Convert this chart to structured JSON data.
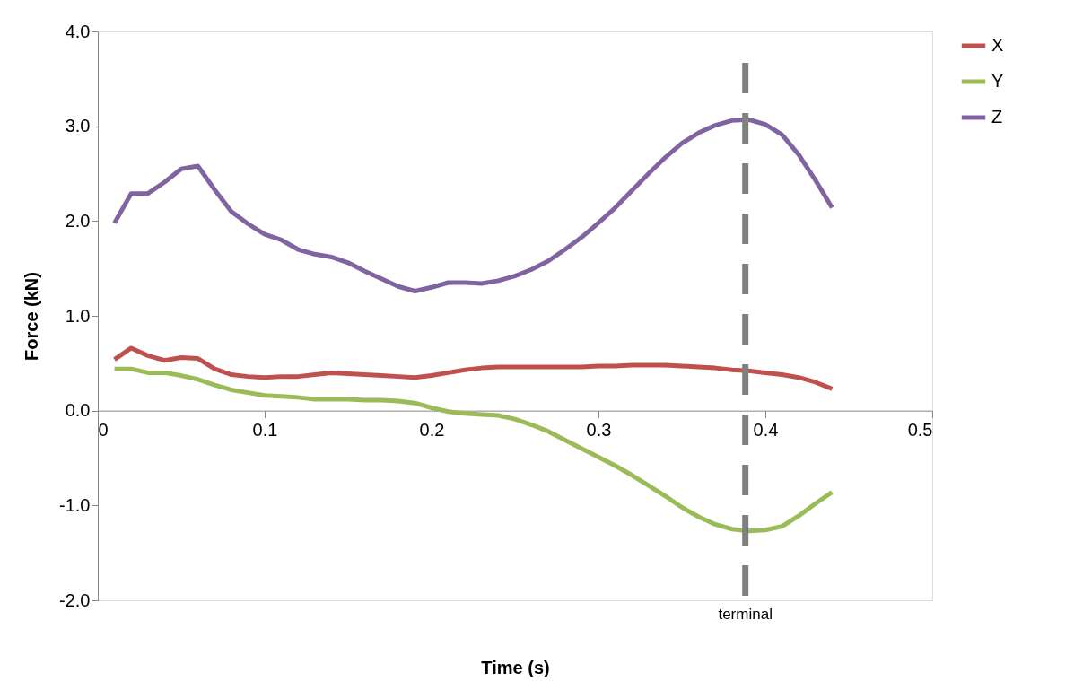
{
  "chart_data": {
    "type": "line",
    "xlabel": "Time (s)",
    "ylabel": "Force (kN)",
    "x": [
      0.01,
      0.02,
      0.03,
      0.04,
      0.05,
      0.06,
      0.07,
      0.08,
      0.09,
      0.1,
      0.11,
      0.12,
      0.13,
      0.14,
      0.15,
      0.16,
      0.17,
      0.18,
      0.19,
      0.2,
      0.21,
      0.22,
      0.23,
      0.24,
      0.25,
      0.26,
      0.27,
      0.28,
      0.29,
      0.3,
      0.31,
      0.32,
      0.33,
      0.34,
      0.35,
      0.36,
      0.37,
      0.38,
      0.39,
      0.4,
      0.41,
      0.42,
      0.43,
      0.44
    ],
    "series": [
      {
        "name": "X",
        "color": "#c0504d",
        "values": [
          0.54,
          0.66,
          0.58,
          0.53,
          0.56,
          0.55,
          0.44,
          0.38,
          0.36,
          0.35,
          0.36,
          0.36,
          0.38,
          0.4,
          0.39,
          0.38,
          0.37,
          0.36,
          0.35,
          0.37,
          0.4,
          0.43,
          0.45,
          0.46,
          0.46,
          0.46,
          0.46,
          0.46,
          0.46,
          0.47,
          0.47,
          0.48,
          0.48,
          0.48,
          0.47,
          0.46,
          0.45,
          0.43,
          0.42,
          0.4,
          0.38,
          0.35,
          0.3,
          0.23
        ]
      },
      {
        "name": "Y",
        "color": "#9bbb59",
        "values": [
          0.44,
          0.44,
          0.4,
          0.4,
          0.37,
          0.33,
          0.27,
          0.22,
          0.19,
          0.16,
          0.15,
          0.14,
          0.12,
          0.12,
          0.12,
          0.11,
          0.11,
          0.1,
          0.08,
          0.03,
          -0.01,
          -0.03,
          -0.04,
          -0.05,
          -0.09,
          -0.15,
          -0.22,
          -0.31,
          -0.4,
          -0.49,
          -0.58,
          -0.68,
          -0.79,
          -0.9,
          -1.02,
          -1.12,
          -1.2,
          -1.25,
          -1.27,
          -1.26,
          -1.22,
          -1.11,
          -0.98,
          -0.86
        ]
      },
      {
        "name": "Z",
        "color": "#8064a2",
        "values": [
          1.98,
          2.29,
          2.29,
          2.41,
          2.55,
          2.58,
          2.33,
          2.1,
          1.97,
          1.86,
          1.8,
          1.7,
          1.65,
          1.62,
          1.56,
          1.47,
          1.39,
          1.31,
          1.26,
          1.3,
          1.35,
          1.35,
          1.34,
          1.37,
          1.42,
          1.49,
          1.58,
          1.7,
          1.83,
          1.98,
          2.14,
          2.32,
          2.5,
          2.67,
          2.82,
          2.93,
          3.01,
          3.06,
          3.07,
          3.02,
          2.91,
          2.7,
          2.43,
          2.14
        ]
      }
    ],
    "xlim": [
      0,
      0.5
    ],
    "xticks": [
      0,
      0.1,
      0.2,
      0.3,
      0.4,
      0.5
    ],
    "ylim": [
      -2.0,
      4.0
    ],
    "yticks": [
      {
        "value": -2,
        "label": "-2.0"
      },
      {
        "value": -1,
        "label": "-1.0"
      },
      {
        "value": 0,
        "label": "0.0"
      },
      {
        "value": 1,
        "label": "1.0"
      },
      {
        "value": 2,
        "label": "2.0"
      },
      {
        "value": 3,
        "label": "3.0"
      },
      {
        "value": 4,
        "label": "4.0"
      }
    ],
    "ref_lines": [
      {
        "axis": "x",
        "value": 0.388,
        "label": "terminal",
        "color": "#808080",
        "line_style": "dashed"
      }
    ],
    "grid": false,
    "legend": "right",
    "marker": "none",
    "line_style": "solid"
  }
}
